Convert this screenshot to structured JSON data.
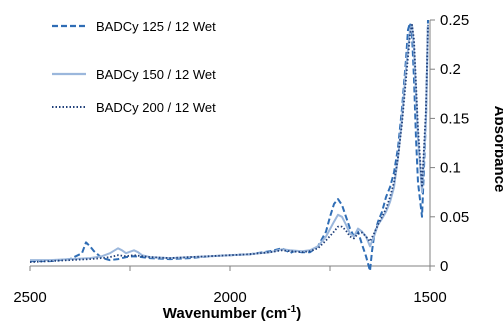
{
  "chart_data": {
    "type": "line",
    "xlabel_main": "Wavenumber (cm",
    "xlabel_sup": "-1",
    "xlabel_tail": ")",
    "ylabel": "Absorbance",
    "xlim": [
      2500,
      1500
    ],
    "ylim": [
      0,
      0.25
    ],
    "x_ticks": [
      "2500",
      "2000",
      "1500"
    ],
    "y_ticks": [
      "0",
      "0.05",
      "0.1",
      "0.15",
      "0.2",
      "0.25"
    ],
    "legend_position": "top-left",
    "series": [
      {
        "name": "BADCy 125 / 12 Wet",
        "color": "#2f6db5",
        "style": "dashed",
        "x": [
          2500,
          2450,
          2400,
          2370,
          2360,
          2350,
          2340,
          2320,
          2300,
          2280,
          2260,
          2240,
          2220,
          2200,
          2150,
          2100,
          2050,
          2000,
          1950,
          1900,
          1870,
          1860,
          1850,
          1840,
          1820,
          1800,
          1780,
          1760,
          1750,
          1740,
          1730,
          1720,
          1710,
          1700,
          1690,
          1680,
          1670,
          1660,
          1650,
          1645,
          1640,
          1630,
          1620,
          1610,
          1600,
          1590,
          1580,
          1570,
          1560,
          1555,
          1550,
          1545,
          1540,
          1535,
          1530,
          1520,
          1510,
          1505
        ],
        "y": [
          0.005,
          0.005,
          0.007,
          0.013,
          0.024,
          0.02,
          0.015,
          0.008,
          0.006,
          0.007,
          0.009,
          0.01,
          0.009,
          0.008,
          0.007,
          0.008,
          0.01,
          0.011,
          0.012,
          0.015,
          0.018,
          0.016,
          0.013,
          0.015,
          0.014,
          0.014,
          0.02,
          0.035,
          0.05,
          0.063,
          0.068,
          0.062,
          0.05,
          0.038,
          0.03,
          0.035,
          0.022,
          0.01,
          -0.005,
          0.015,
          0.03,
          0.045,
          0.055,
          0.07,
          0.08,
          0.095,
          0.12,
          0.16,
          0.21,
          0.24,
          0.247,
          0.235,
          0.19,
          0.13,
          0.085,
          0.05,
          0.15,
          0.25
        ]
      },
      {
        "name": "BADCy 150 / 12 Wet",
        "color": "#9bb7dc",
        "style": "solid",
        "x": [
          2500,
          2450,
          2400,
          2350,
          2320,
          2300,
          2280,
          2270,
          2260,
          2240,
          2230,
          2220,
          2200,
          2150,
          2100,
          2050,
          2000,
          1950,
          1900,
          1870,
          1850,
          1820,
          1800,
          1780,
          1760,
          1740,
          1730,
          1720,
          1710,
          1700,
          1690,
          1680,
          1670,
          1660,
          1650,
          1640,
          1630,
          1620,
          1610,
          1600,
          1590,
          1580,
          1570,
          1560,
          1550,
          1545,
          1540,
          1530,
          1520,
          1510,
          1505
        ],
        "y": [
          0.006,
          0.006,
          0.007,
          0.008,
          0.01,
          0.013,
          0.018,
          0.016,
          0.013,
          0.016,
          0.014,
          0.011,
          0.009,
          0.008,
          0.009,
          0.01,
          0.011,
          0.012,
          0.014,
          0.017,
          0.016,
          0.015,
          0.016,
          0.02,
          0.03,
          0.045,
          0.052,
          0.05,
          0.042,
          0.033,
          0.03,
          0.038,
          0.035,
          0.03,
          0.02,
          0.03,
          0.042,
          0.048,
          0.055,
          0.065,
          0.08,
          0.11,
          0.15,
          0.2,
          0.24,
          0.245,
          0.22,
          0.13,
          0.075,
          0.15,
          0.245
        ]
      },
      {
        "name": "BADCy 200 / 12 Wet",
        "color": "#1f3f7a",
        "style": "dotted",
        "x": [
          2500,
          2450,
          2400,
          2350,
          2320,
          2300,
          2280,
          2260,
          2240,
          2220,
          2200,
          2150,
          2100,
          2050,
          2000,
          1950,
          1900,
          1870,
          1850,
          1820,
          1800,
          1780,
          1760,
          1740,
          1730,
          1720,
          1710,
          1700,
          1690,
          1680,
          1670,
          1660,
          1650,
          1640,
          1630,
          1620,
          1610,
          1600,
          1590,
          1580,
          1570,
          1560,
          1550,
          1545,
          1540,
          1530,
          1520,
          1510,
          1505
        ],
        "y": [
          0.004,
          0.005,
          0.006,
          0.007,
          0.008,
          0.009,
          0.011,
          0.01,
          0.011,
          0.01,
          0.009,
          0.008,
          0.009,
          0.01,
          0.011,
          0.012,
          0.014,
          0.016,
          0.015,
          0.014,
          0.015,
          0.018,
          0.026,
          0.035,
          0.04,
          0.04,
          0.036,
          0.03,
          0.028,
          0.033,
          0.034,
          0.03,
          0.025,
          0.033,
          0.042,
          0.05,
          0.058,
          0.07,
          0.085,
          0.11,
          0.145,
          0.19,
          0.235,
          0.245,
          0.23,
          0.14,
          0.08,
          0.16,
          0.245
        ]
      }
    ]
  }
}
